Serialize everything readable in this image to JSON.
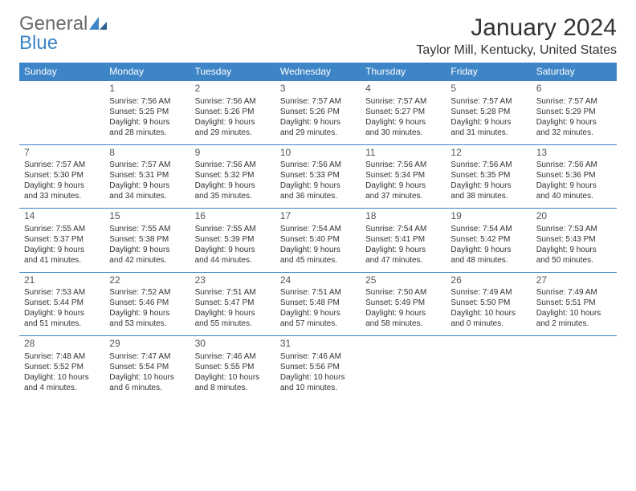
{
  "logo": {
    "word1": "General",
    "word2": "Blue"
  },
  "title": "January 2024",
  "location": "Taylor Mill, Kentucky, United States",
  "colors": {
    "header_bg": "#3d85c6",
    "header_text": "#ffffff",
    "body_text": "#333333",
    "logo_gray": "#6a6a6a",
    "logo_blue": "#3d85c6"
  },
  "day_headers": [
    "Sunday",
    "Monday",
    "Tuesday",
    "Wednesday",
    "Thursday",
    "Friday",
    "Saturday"
  ],
  "weeks": [
    [
      null,
      {
        "n": "1",
        "sr": "Sunrise: 7:56 AM",
        "ss": "Sunset: 5:25 PM",
        "d1": "Daylight: 9 hours",
        "d2": "and 28 minutes."
      },
      {
        "n": "2",
        "sr": "Sunrise: 7:56 AM",
        "ss": "Sunset: 5:26 PM",
        "d1": "Daylight: 9 hours",
        "d2": "and 29 minutes."
      },
      {
        "n": "3",
        "sr": "Sunrise: 7:57 AM",
        "ss": "Sunset: 5:26 PM",
        "d1": "Daylight: 9 hours",
        "d2": "and 29 minutes."
      },
      {
        "n": "4",
        "sr": "Sunrise: 7:57 AM",
        "ss": "Sunset: 5:27 PM",
        "d1": "Daylight: 9 hours",
        "d2": "and 30 minutes."
      },
      {
        "n": "5",
        "sr": "Sunrise: 7:57 AM",
        "ss": "Sunset: 5:28 PM",
        "d1": "Daylight: 9 hours",
        "d2": "and 31 minutes."
      },
      {
        "n": "6",
        "sr": "Sunrise: 7:57 AM",
        "ss": "Sunset: 5:29 PM",
        "d1": "Daylight: 9 hours",
        "d2": "and 32 minutes."
      }
    ],
    [
      {
        "n": "7",
        "sr": "Sunrise: 7:57 AM",
        "ss": "Sunset: 5:30 PM",
        "d1": "Daylight: 9 hours",
        "d2": "and 33 minutes."
      },
      {
        "n": "8",
        "sr": "Sunrise: 7:57 AM",
        "ss": "Sunset: 5:31 PM",
        "d1": "Daylight: 9 hours",
        "d2": "and 34 minutes."
      },
      {
        "n": "9",
        "sr": "Sunrise: 7:56 AM",
        "ss": "Sunset: 5:32 PM",
        "d1": "Daylight: 9 hours",
        "d2": "and 35 minutes."
      },
      {
        "n": "10",
        "sr": "Sunrise: 7:56 AM",
        "ss": "Sunset: 5:33 PM",
        "d1": "Daylight: 9 hours",
        "d2": "and 36 minutes."
      },
      {
        "n": "11",
        "sr": "Sunrise: 7:56 AM",
        "ss": "Sunset: 5:34 PM",
        "d1": "Daylight: 9 hours",
        "d2": "and 37 minutes."
      },
      {
        "n": "12",
        "sr": "Sunrise: 7:56 AM",
        "ss": "Sunset: 5:35 PM",
        "d1": "Daylight: 9 hours",
        "d2": "and 38 minutes."
      },
      {
        "n": "13",
        "sr": "Sunrise: 7:56 AM",
        "ss": "Sunset: 5:36 PM",
        "d1": "Daylight: 9 hours",
        "d2": "and 40 minutes."
      }
    ],
    [
      {
        "n": "14",
        "sr": "Sunrise: 7:55 AM",
        "ss": "Sunset: 5:37 PM",
        "d1": "Daylight: 9 hours",
        "d2": "and 41 minutes."
      },
      {
        "n": "15",
        "sr": "Sunrise: 7:55 AM",
        "ss": "Sunset: 5:38 PM",
        "d1": "Daylight: 9 hours",
        "d2": "and 42 minutes."
      },
      {
        "n": "16",
        "sr": "Sunrise: 7:55 AM",
        "ss": "Sunset: 5:39 PM",
        "d1": "Daylight: 9 hours",
        "d2": "and 44 minutes."
      },
      {
        "n": "17",
        "sr": "Sunrise: 7:54 AM",
        "ss": "Sunset: 5:40 PM",
        "d1": "Daylight: 9 hours",
        "d2": "and 45 minutes."
      },
      {
        "n": "18",
        "sr": "Sunrise: 7:54 AM",
        "ss": "Sunset: 5:41 PM",
        "d1": "Daylight: 9 hours",
        "d2": "and 47 minutes."
      },
      {
        "n": "19",
        "sr": "Sunrise: 7:54 AM",
        "ss": "Sunset: 5:42 PM",
        "d1": "Daylight: 9 hours",
        "d2": "and 48 minutes."
      },
      {
        "n": "20",
        "sr": "Sunrise: 7:53 AM",
        "ss": "Sunset: 5:43 PM",
        "d1": "Daylight: 9 hours",
        "d2": "and 50 minutes."
      }
    ],
    [
      {
        "n": "21",
        "sr": "Sunrise: 7:53 AM",
        "ss": "Sunset: 5:44 PM",
        "d1": "Daylight: 9 hours",
        "d2": "and 51 minutes."
      },
      {
        "n": "22",
        "sr": "Sunrise: 7:52 AM",
        "ss": "Sunset: 5:46 PM",
        "d1": "Daylight: 9 hours",
        "d2": "and 53 minutes."
      },
      {
        "n": "23",
        "sr": "Sunrise: 7:51 AM",
        "ss": "Sunset: 5:47 PM",
        "d1": "Daylight: 9 hours",
        "d2": "and 55 minutes."
      },
      {
        "n": "24",
        "sr": "Sunrise: 7:51 AM",
        "ss": "Sunset: 5:48 PM",
        "d1": "Daylight: 9 hours",
        "d2": "and 57 minutes."
      },
      {
        "n": "25",
        "sr": "Sunrise: 7:50 AM",
        "ss": "Sunset: 5:49 PM",
        "d1": "Daylight: 9 hours",
        "d2": "and 58 minutes."
      },
      {
        "n": "26",
        "sr": "Sunrise: 7:49 AM",
        "ss": "Sunset: 5:50 PM",
        "d1": "Daylight: 10 hours",
        "d2": "and 0 minutes."
      },
      {
        "n": "27",
        "sr": "Sunrise: 7:49 AM",
        "ss": "Sunset: 5:51 PM",
        "d1": "Daylight: 10 hours",
        "d2": "and 2 minutes."
      }
    ],
    [
      {
        "n": "28",
        "sr": "Sunrise: 7:48 AM",
        "ss": "Sunset: 5:52 PM",
        "d1": "Daylight: 10 hours",
        "d2": "and 4 minutes."
      },
      {
        "n": "29",
        "sr": "Sunrise: 7:47 AM",
        "ss": "Sunset: 5:54 PM",
        "d1": "Daylight: 10 hours",
        "d2": "and 6 minutes."
      },
      {
        "n": "30",
        "sr": "Sunrise: 7:46 AM",
        "ss": "Sunset: 5:55 PM",
        "d1": "Daylight: 10 hours",
        "d2": "and 8 minutes."
      },
      {
        "n": "31",
        "sr": "Sunrise: 7:46 AM",
        "ss": "Sunset: 5:56 PM",
        "d1": "Daylight: 10 hours",
        "d2": "and 10 minutes."
      },
      null,
      null,
      null
    ]
  ]
}
